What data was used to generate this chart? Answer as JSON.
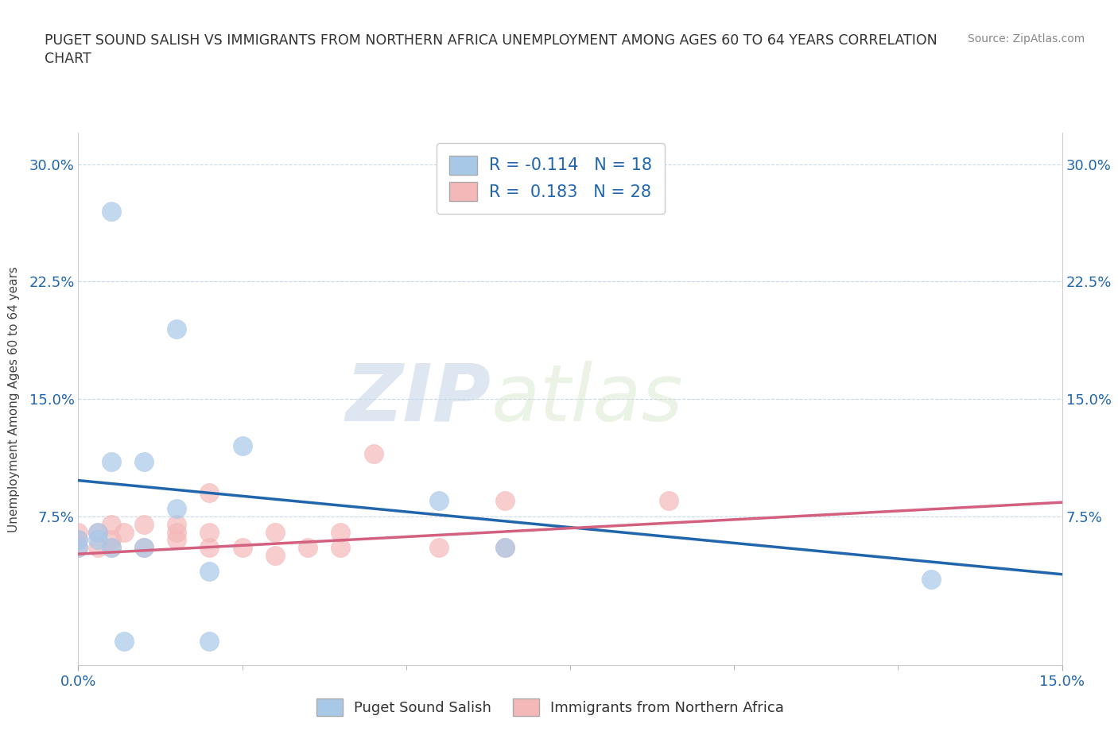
{
  "title_line1": "PUGET SOUND SALISH VS IMMIGRANTS FROM NORTHERN AFRICA UNEMPLOYMENT AMONG AGES 60 TO 64 YEARS CORRELATION",
  "title_line2": "CHART",
  "source": "Source: ZipAtlas.com",
  "ylabel_label": "Unemployment Among Ages 60 to 64 years",
  "xlim": [
    0.0,
    0.15
  ],
  "ylim": [
    -0.02,
    0.32
  ],
  "ytick_positions": [
    0.075,
    0.15,
    0.225,
    0.3
  ],
  "ytick_labels": [
    "7.5%",
    "15.0%",
    "22.5%",
    "30.0%"
  ],
  "xtick_positions": [
    0.0,
    0.15
  ],
  "xtick_labels": [
    "0.0%",
    "15.0%"
  ],
  "xtick_minor": [
    0.025,
    0.05,
    0.075,
    0.1,
    0.125
  ],
  "blue_color": "#a8c8e8",
  "pink_color": "#f4b8b8",
  "blue_line_color": "#2166ac",
  "pink_line_color": "#d46080",
  "tick_label_color": "#2166ac",
  "r_blue": "-0.114",
  "n_blue": 18,
  "r_pink": "0.183",
  "n_pink": 28,
  "blue_scatter_x": [
    0.005,
    0.015,
    0.025,
    0.0,
    0.0,
    0.003,
    0.003,
    0.005,
    0.005,
    0.007,
    0.01,
    0.01,
    0.015,
    0.02,
    0.02,
    0.055,
    0.065,
    0.13
  ],
  "blue_scatter_y": [
    0.27,
    0.195,
    0.12,
    0.055,
    0.06,
    0.06,
    0.065,
    0.055,
    0.11,
    -0.005,
    0.055,
    0.11,
    0.08,
    0.04,
    -0.005,
    0.085,
    0.055,
    0.035
  ],
  "pink_scatter_x": [
    0.0,
    0.0,
    0.0,
    0.003,
    0.003,
    0.005,
    0.005,
    0.005,
    0.007,
    0.01,
    0.01,
    0.015,
    0.015,
    0.015,
    0.02,
    0.02,
    0.02,
    0.025,
    0.03,
    0.03,
    0.035,
    0.04,
    0.04,
    0.045,
    0.055,
    0.065,
    0.065,
    0.09
  ],
  "pink_scatter_y": [
    0.055,
    0.06,
    0.065,
    0.055,
    0.065,
    0.055,
    0.06,
    0.07,
    0.065,
    0.055,
    0.07,
    0.06,
    0.065,
    0.07,
    0.055,
    0.065,
    0.09,
    0.055,
    0.05,
    0.065,
    0.055,
    0.055,
    0.065,
    0.115,
    0.055,
    0.055,
    0.085,
    0.085
  ],
  "watermark_zip": "ZIP",
  "watermark_atlas": "atlas",
  "legend_label_blue": "Puget Sound Salish",
  "legend_label_pink": "Immigrants from Northern Africa",
  "blue_trend_intercept": 0.098,
  "blue_trend_slope": -0.4,
  "pink_trend_intercept": 0.051,
  "pink_trend_slope": 0.22,
  "grid_color": "#c8d8e8",
  "grid_style": "--"
}
